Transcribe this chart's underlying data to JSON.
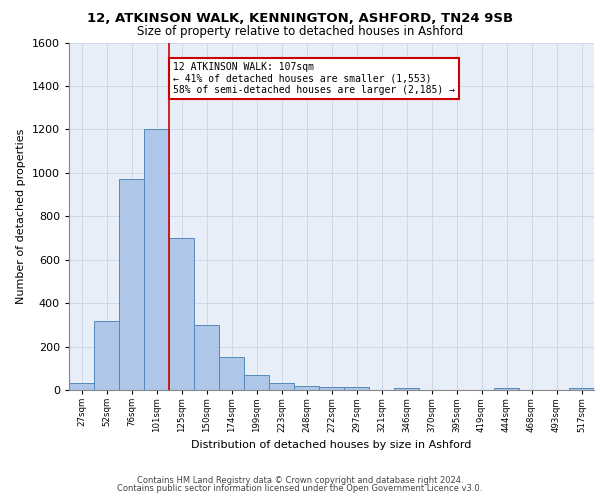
{
  "title1": "12, ATKINSON WALK, KENNINGTON, ASHFORD, TN24 9SB",
  "title2": "Size of property relative to detached houses in Ashford",
  "xlabel": "Distribution of detached houses by size in Ashford",
  "ylabel": "Number of detached properties",
  "bar_values": [
    30,
    320,
    970,
    1200,
    700,
    300,
    150,
    70,
    30,
    20,
    15,
    15,
    0,
    10,
    0,
    0,
    0,
    10,
    0,
    0,
    10
  ],
  "bin_labels": [
    "27sqm",
    "52sqm",
    "76sqm",
    "101sqm",
    "125sqm",
    "150sqm",
    "174sqm",
    "199sqm",
    "223sqm",
    "248sqm",
    "272sqm",
    "297sqm",
    "321sqm",
    "346sqm",
    "370sqm",
    "395sqm",
    "419sqm",
    "444sqm",
    "468sqm",
    "493sqm",
    "517sqm"
  ],
  "bar_color": "#aec6e8",
  "bar_edge_color": "#5588bb",
  "bin_width": 25,
  "property_line_x": 3,
  "annotation_line": "12 ATKINSON WALK: 107sqm",
  "annotation_line2": "← 41% of detached houses are smaller (1,553)",
  "annotation_line3": "58% of semi-detached houses are larger (2,185) →",
  "annotation_box_color": "#cc0000",
  "ylim": [
    0,
    1600
  ],
  "yticks": [
    0,
    200,
    400,
    600,
    800,
    1000,
    1200,
    1400,
    1600
  ],
  "grid_color": "#c8d4e8",
  "bg_color": "#e8eef8",
  "footer1": "Contains HM Land Registry data © Crown copyright and database right 2024.",
  "footer2": "Contains public sector information licensed under the Open Government Licence v3.0."
}
